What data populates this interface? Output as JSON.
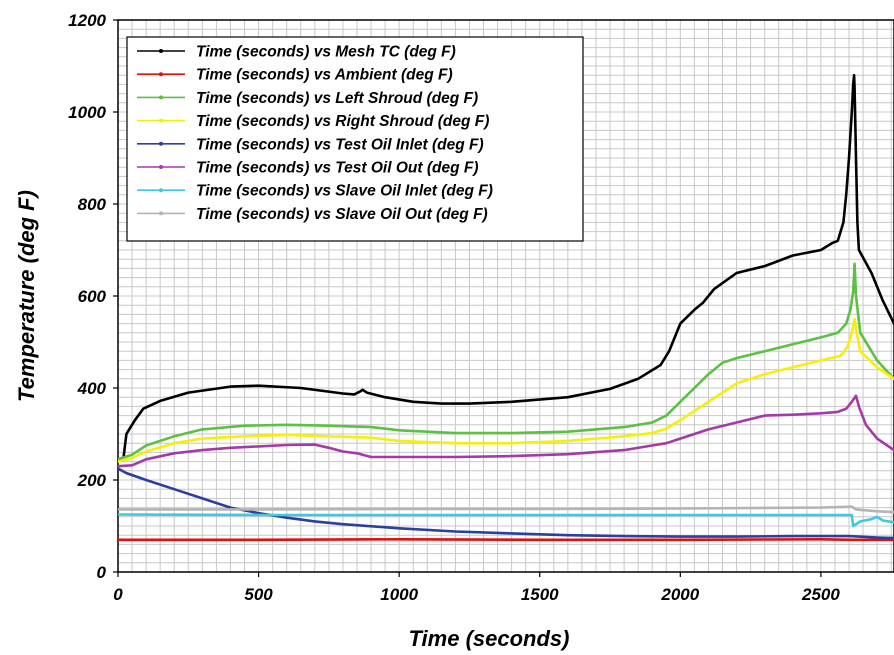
{
  "chart_data": {
    "type": "line",
    "title": "",
    "xlabel": "Time (seconds)",
    "ylabel": "Temperature (deg F)",
    "xlim": [
      0,
      2760
    ],
    "ylim": [
      0,
      1200
    ],
    "x_ticks": [
      0,
      500,
      1000,
      1500,
      2000,
      2500
    ],
    "y_ticks": [
      0,
      200,
      400,
      600,
      800,
      1000,
      1200
    ],
    "grid": true,
    "legend_position": "top-left",
    "series": [
      {
        "name": "Time (seconds) vs Mesh TC (deg F)",
        "color": "#000000",
        "points": [
          [
            0,
            240
          ],
          [
            20,
            250
          ],
          [
            30,
            300
          ],
          [
            60,
            330
          ],
          [
            90,
            355
          ],
          [
            150,
            372
          ],
          [
            250,
            390
          ],
          [
            400,
            403
          ],
          [
            500,
            405
          ],
          [
            650,
            400
          ],
          [
            800,
            388
          ],
          [
            840,
            386
          ],
          [
            860,
            392
          ],
          [
            870,
            396
          ],
          [
            885,
            390
          ],
          [
            950,
            380
          ],
          [
            1050,
            370
          ],
          [
            1150,
            366
          ],
          [
            1250,
            366
          ],
          [
            1400,
            370
          ],
          [
            1600,
            380
          ],
          [
            1750,
            398
          ],
          [
            1850,
            420
          ],
          [
            1930,
            450
          ],
          [
            1960,
            480
          ],
          [
            2000,
            540
          ],
          [
            2050,
            570
          ],
          [
            2080,
            585
          ],
          [
            2120,
            615
          ],
          [
            2200,
            650
          ],
          [
            2300,
            665
          ],
          [
            2400,
            688
          ],
          [
            2500,
            700
          ],
          [
            2540,
            715
          ],
          [
            2560,
            720
          ],
          [
            2580,
            760
          ],
          [
            2590,
            820
          ],
          [
            2600,
            900
          ],
          [
            2605,
            950
          ],
          [
            2610,
            1000
          ],
          [
            2615,
            1060
          ],
          [
            2618,
            1080
          ],
          [
            2620,
            1050
          ],
          [
            2625,
            900
          ],
          [
            2630,
            760
          ],
          [
            2635,
            700
          ],
          [
            2680,
            650
          ],
          [
            2720,
            590
          ],
          [
            2760,
            540
          ]
        ]
      },
      {
        "name": "Time (seconds) vs Ambient (deg F)",
        "color": "#e01010",
        "points": [
          [
            0,
            70
          ],
          [
            500,
            70
          ],
          [
            1000,
            71
          ],
          [
            1500,
            70
          ],
          [
            2000,
            70
          ],
          [
            2500,
            71
          ],
          [
            2610,
            70
          ],
          [
            2760,
            70
          ]
        ]
      },
      {
        "name": "Time (seconds) vs Left Shroud (deg F)",
        "color": "#5cc042",
        "points": [
          [
            0,
            245
          ],
          [
            50,
            255
          ],
          [
            100,
            275
          ],
          [
            200,
            295
          ],
          [
            300,
            310
          ],
          [
            450,
            318
          ],
          [
            600,
            320
          ],
          [
            750,
            318
          ],
          [
            900,
            315
          ],
          [
            1000,
            308
          ],
          [
            1200,
            302
          ],
          [
            1400,
            302
          ],
          [
            1600,
            305
          ],
          [
            1800,
            315
          ],
          [
            1900,
            325
          ],
          [
            1950,
            340
          ],
          [
            2000,
            370
          ],
          [
            2050,
            400
          ],
          [
            2100,
            430
          ],
          [
            2150,
            455
          ],
          [
            2200,
            465
          ],
          [
            2300,
            480
          ],
          [
            2400,
            495
          ],
          [
            2500,
            510
          ],
          [
            2560,
            520
          ],
          [
            2590,
            540
          ],
          [
            2605,
            570
          ],
          [
            2615,
            610
          ],
          [
            2620,
            670
          ],
          [
            2625,
            600
          ],
          [
            2640,
            520
          ],
          [
            2700,
            460
          ],
          [
            2760,
            420
          ]
        ]
      },
      {
        "name": "Time (seconds) vs Right Shroud (deg F)",
        "color": "#f5f00a",
        "points": [
          [
            0,
            240
          ],
          [
            50,
            248
          ],
          [
            100,
            262
          ],
          [
            200,
            280
          ],
          [
            300,
            290
          ],
          [
            450,
            295
          ],
          [
            600,
            298
          ],
          [
            750,
            295
          ],
          [
            900,
            292
          ],
          [
            1000,
            285
          ],
          [
            1200,
            280
          ],
          [
            1400,
            280
          ],
          [
            1600,
            285
          ],
          [
            1800,
            295
          ],
          [
            1900,
            302
          ],
          [
            1950,
            312
          ],
          [
            2000,
            330
          ],
          [
            2100,
            370
          ],
          [
            2200,
            410
          ],
          [
            2300,
            430
          ],
          [
            2400,
            445
          ],
          [
            2500,
            460
          ],
          [
            2570,
            470
          ],
          [
            2595,
            490
          ],
          [
            2610,
            520
          ],
          [
            2620,
            550
          ],
          [
            2625,
            530
          ],
          [
            2640,
            480
          ],
          [
            2700,
            445
          ],
          [
            2760,
            420
          ]
        ]
      },
      {
        "name": "Time (seconds) vs Test Oil Inlet (deg F)",
        "color": "#2a3fa0",
        "points": [
          [
            0,
            225
          ],
          [
            30,
            215
          ],
          [
            100,
            200
          ],
          [
            200,
            180
          ],
          [
            300,
            160
          ],
          [
            400,
            140
          ],
          [
            500,
            128
          ],
          [
            600,
            118
          ],
          [
            700,
            110
          ],
          [
            800,
            104
          ],
          [
            1000,
            95
          ],
          [
            1200,
            88
          ],
          [
            1400,
            84
          ],
          [
            1600,
            80
          ],
          [
            1800,
            78
          ],
          [
            2000,
            77
          ],
          [
            2200,
            77
          ],
          [
            2400,
            78
          ],
          [
            2600,
            78
          ],
          [
            2700,
            75
          ],
          [
            2760,
            74
          ]
        ]
      },
      {
        "name": "Time (seconds) vs Test Oil Out (deg F)",
        "color": "#a43aa8",
        "points": [
          [
            0,
            230
          ],
          [
            50,
            232
          ],
          [
            100,
            245
          ],
          [
            200,
            258
          ],
          [
            300,
            265
          ],
          [
            400,
            270
          ],
          [
            500,
            273
          ],
          [
            600,
            276
          ],
          [
            700,
            277
          ],
          [
            750,
            270
          ],
          [
            800,
            262
          ],
          [
            850,
            258
          ],
          [
            900,
            250
          ],
          [
            1000,
            250
          ],
          [
            1200,
            250
          ],
          [
            1400,
            252
          ],
          [
            1600,
            256
          ],
          [
            1800,
            265
          ],
          [
            1900,
            275
          ],
          [
            1950,
            280
          ],
          [
            2000,
            290
          ],
          [
            2100,
            310
          ],
          [
            2200,
            325
          ],
          [
            2300,
            340
          ],
          [
            2400,
            342
          ],
          [
            2500,
            345
          ],
          [
            2560,
            348
          ],
          [
            2590,
            355
          ],
          [
            2610,
            370
          ],
          [
            2625,
            383
          ],
          [
            2635,
            360
          ],
          [
            2660,
            320
          ],
          [
            2700,
            290
          ],
          [
            2760,
            265
          ]
        ]
      },
      {
        "name": "Time (seconds) vs Slave Oil Inlet (deg F)",
        "color": "#3fc8e0",
        "points": [
          [
            0,
            125
          ],
          [
            500,
            124
          ],
          [
            1000,
            124
          ],
          [
            1500,
            124
          ],
          [
            2000,
            124
          ],
          [
            2500,
            124
          ],
          [
            2610,
            124
          ],
          [
            2615,
            100
          ],
          [
            2640,
            110
          ],
          [
            2680,
            115
          ],
          [
            2700,
            120
          ],
          [
            2720,
            112
          ],
          [
            2760,
            108
          ]
        ]
      },
      {
        "name": "Time (seconds) vs Slave Oil Out (deg F)",
        "color": "#b4b4b4",
        "points": [
          [
            0,
            136
          ],
          [
            500,
            136
          ],
          [
            1000,
            137
          ],
          [
            1500,
            137
          ],
          [
            2000,
            138
          ],
          [
            2500,
            140
          ],
          [
            2610,
            142
          ],
          [
            2625,
            136
          ],
          [
            2700,
            132
          ],
          [
            2760,
            130
          ]
        ]
      }
    ]
  }
}
